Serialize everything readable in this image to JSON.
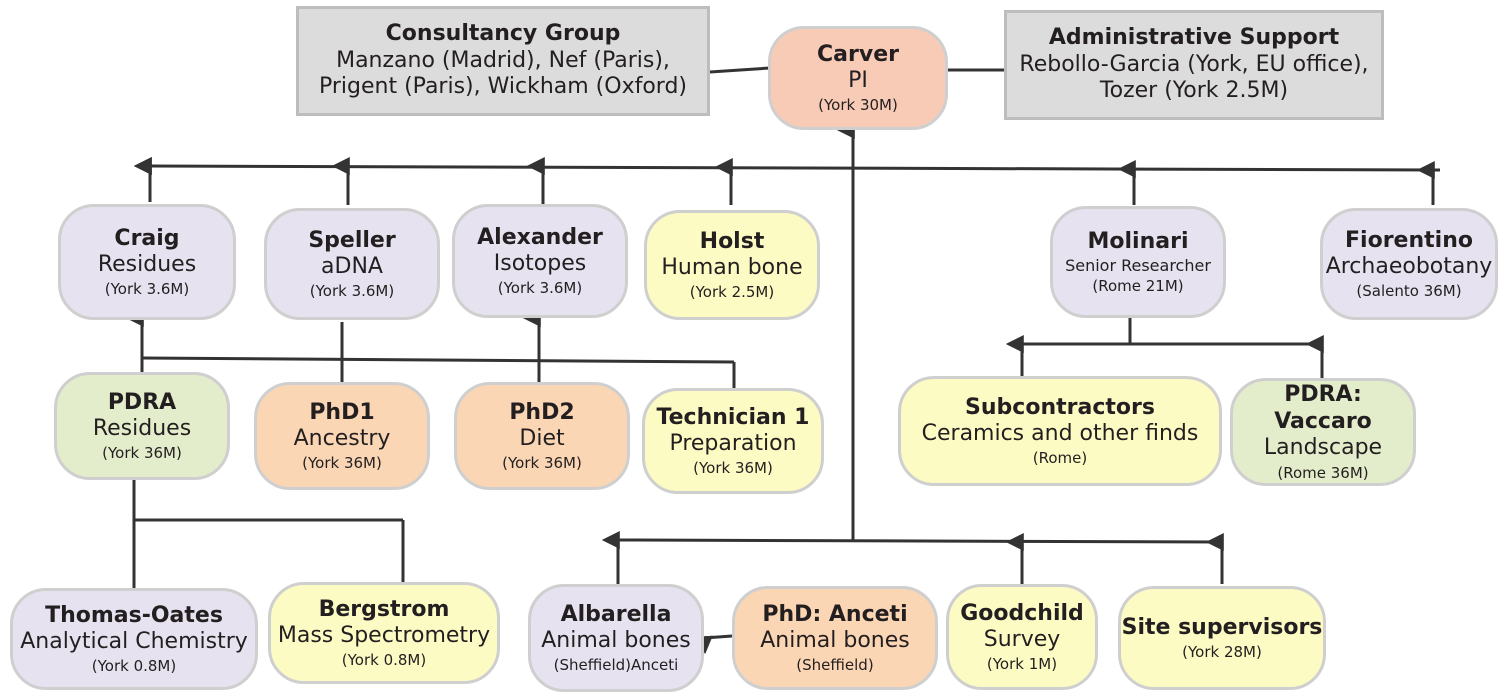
{
  "consultancy": {
    "title": "Consultancy Group",
    "line1": "Manzano  (Madrid),  Nef (Paris),",
    "line2": "Prigent (Paris), Wickham (Oxford)"
  },
  "pi": {
    "name": "Carver",
    "role": "PI",
    "loc": "(York 30M)"
  },
  "admin": {
    "title": "Administrative Support",
    "line1": "Rebollo-Garcia  (York, EU office),",
    "line2": "Tozer (York 2.5M)"
  },
  "craig": {
    "name": "Craig",
    "role": "Residues",
    "loc": "(York 3.6M)"
  },
  "speller": {
    "name": "Speller",
    "role": "aDNA",
    "loc": "(York 3.6M)"
  },
  "alexander": {
    "name": "Alexander",
    "role": "Isotopes",
    "loc": "(York 3.6M)"
  },
  "holst": {
    "name": "Holst",
    "role": "Human bone",
    "loc": "(York 2.5M)"
  },
  "molinari": {
    "name": "Molinari",
    "role": "Senior Researcher",
    "loc": "(Rome 21M)"
  },
  "fiorentino": {
    "name": "Fiorentino",
    "role": "Archaeobotany",
    "loc": "(Salento 36M)"
  },
  "pdra": {
    "name": "PDRA",
    "role": "Residues",
    "loc": "(York 36M)"
  },
  "phd1": {
    "name": "PhD1",
    "role": "Ancestry",
    "loc": "(York 36M)"
  },
  "phd2": {
    "name": "PhD2",
    "role": "Diet",
    "loc": "(York 36M)"
  },
  "tech1": {
    "name": "Technician 1",
    "role": "Preparation",
    "loc": "(York 36M)"
  },
  "subcontractors": {
    "name": "Subcontractors",
    "role": "Ceramics and other finds",
    "loc": "(Rome)"
  },
  "vaccaro": {
    "name": "PDRA: Vaccaro",
    "role": "Landscape",
    "loc": "(Rome 36M)"
  },
  "thomas": {
    "name": "Thomas-Oates",
    "role": "Analytical Chemistry",
    "loc": "(York 0.8M)"
  },
  "bergstrom": {
    "name": "Bergstrom",
    "role": "Mass Spectrometry",
    "loc": "(York 0.8M)"
  },
  "albarella": {
    "name": "Albarella",
    "role": "Animal bones",
    "loc": "(Sheffield)Anceti"
  },
  "anceti": {
    "name": "PhD: Anceti",
    "role": "Animal bones",
    "loc": "(Sheffield)"
  },
  "goodchild": {
    "name": "Goodchild",
    "role": "Survey",
    "loc": "(York 1M)"
  },
  "site": {
    "name": "Site supervisors",
    "loc": "(York 28M)"
  },
  "colors": {
    "line": "#333333",
    "purple": "#e6e2f0",
    "yellow": "#fdfbc4",
    "orange": "#fbd6b4",
    "green": "#e4edcb",
    "salmon": "#f8cbb6",
    "grey": "#dcdcdc"
  }
}
